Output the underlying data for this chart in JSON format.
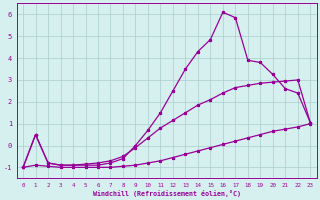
{
  "xlabel": "Windchill (Refroidissement éolien,°C)",
  "x": [
    0,
    1,
    2,
    3,
    4,
    5,
    6,
    7,
    8,
    9,
    10,
    11,
    12,
    13,
    14,
    15,
    16,
    17,
    18,
    19,
    20,
    21,
    22,
    23
  ],
  "line_max": [
    -1.0,
    0.5,
    -0.8,
    -0.9,
    -0.9,
    -0.9,
    -0.9,
    -0.8,
    -0.6,
    0.0,
    0.7,
    1.5,
    2.5,
    3.5,
    4.3,
    4.85,
    6.1,
    5.85,
    3.9,
    3.8,
    3.25,
    2.6,
    2.4,
    1.05
  ],
  "line_mid": [
    -1.0,
    0.5,
    -0.8,
    -0.9,
    -0.9,
    -0.85,
    -0.8,
    -0.7,
    -0.5,
    -0.1,
    0.35,
    0.8,
    1.15,
    1.5,
    1.85,
    2.1,
    2.4,
    2.65,
    2.75,
    2.85,
    2.9,
    2.95,
    3.0,
    1.05
  ],
  "line_min": [
    -1.0,
    -0.9,
    -0.95,
    -1.0,
    -1.0,
    -1.0,
    -1.0,
    -1.0,
    -0.95,
    -0.9,
    -0.8,
    -0.7,
    -0.55,
    -0.4,
    -0.25,
    -0.1,
    0.05,
    0.2,
    0.35,
    0.5,
    0.65,
    0.75,
    0.85,
    1.0
  ],
  "line_color": "#990099",
  "bg_color": "#d6f0f0",
  "grid_color": "#aacccc",
  "axis_color": "#990099",
  "ylim": [
    -1.5,
    6.5
  ],
  "xlim": [
    -0.5,
    23.5
  ],
  "yticks": [
    -1,
    0,
    1,
    2,
    3,
    4,
    5,
    6
  ],
  "xticks": [
    0,
    1,
    2,
    3,
    4,
    5,
    6,
    7,
    8,
    9,
    10,
    11,
    12,
    13,
    14,
    15,
    16,
    17,
    18,
    19,
    20,
    21,
    22,
    23
  ]
}
